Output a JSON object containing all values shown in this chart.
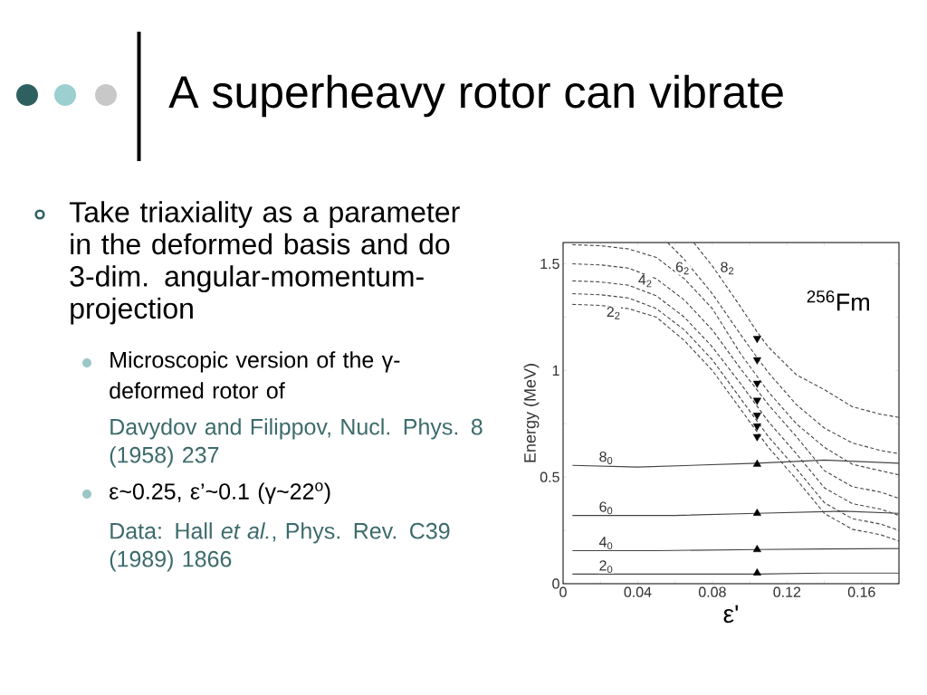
{
  "chart_data": {
    "type": "line",
    "title": "A superheavy rotor can vibrate",
    "xlabel": "ε'",
    "ylabel": "Energy (MeV)",
    "xlim": [
      0,
      0.18
    ],
    "ylim": [
      0,
      1.6
    ],
    "xticks": [
      0,
      {
        "value": 0.02,
        "label": null
      },
      0.04,
      {
        "value": 0.06,
        "label": null
      },
      0.08,
      {
        "value": 0.1,
        "label": null
      },
      0.12,
      {
        "value": 0.14,
        "label": null
      },
      0.16
    ],
    "yticks": [
      0,
      {
        "value": 0.25,
        "label": null
      },
      0.5,
      {
        "value": 0.75,
        "label": null
      },
      1,
      {
        "value": 1.25,
        "label": null
      },
      1.5
    ],
    "grid": false,
    "series": [
      {
        "color": "#444444",
        "line_style": "solid",
        "marker": "none",
        "x": [
          0.005,
          0.05,
          0.104,
          0.14,
          0.18
        ],
        "values": [
          0.045,
          0.045,
          0.045,
          0.05,
          0.05
        ]
      },
      {
        "color": "#444444",
        "line_style": "solid",
        "marker": "none",
        "x": [
          0.005,
          0.05,
          0.104,
          0.14,
          0.18
        ],
        "values": [
          0.155,
          0.155,
          0.16,
          0.163,
          0.165
        ]
      },
      {
        "color": "#444444",
        "line_style": "solid",
        "marker": "none",
        "x": [
          0.005,
          0.06,
          0.104,
          0.15,
          0.18
        ],
        "values": [
          0.32,
          0.32,
          0.33,
          0.34,
          0.33
        ]
      },
      {
        "color": "#444444",
        "line_style": "solid",
        "marker": "none",
        "x": [
          0.005,
          0.04,
          0.104,
          0.14,
          0.18
        ],
        "values": [
          0.555,
          0.547,
          0.565,
          0.58,
          0.565
        ]
      },
      {
        "color": "#444444",
        "line_style": "dashed",
        "marker": "none",
        "x": [
          0.005,
          0.02,
          0.035,
          0.05,
          0.065,
          0.08,
          0.095,
          0.11,
          0.125,
          0.14,
          0.155,
          0.17,
          0.18
        ],
        "values": [
          1.31,
          1.305,
          1.29,
          1.25,
          1.14,
          1.0,
          0.82,
          0.64,
          0.49,
          0.33,
          0.255,
          0.23,
          0.2
        ]
      },
      {
        "color": "#444444",
        "line_style": "dashed",
        "marker": "none",
        "x": [
          0.005,
          0.02,
          0.035,
          0.05,
          0.065,
          0.08,
          0.095,
          0.11,
          0.125,
          0.14,
          0.155,
          0.17,
          0.18
        ],
        "values": [
          1.36,
          1.355,
          1.34,
          1.29,
          1.19,
          1.05,
          0.87,
          0.69,
          0.54,
          0.38,
          0.305,
          0.28,
          0.25
        ]
      },
      {
        "color": "#444444",
        "line_style": "dashed",
        "marker": "none",
        "x": [
          0.005,
          0.02,
          0.035,
          0.05,
          0.065,
          0.08,
          0.095,
          0.11,
          0.125,
          0.14,
          0.155,
          0.17,
          0.18
        ],
        "values": [
          1.42,
          1.415,
          1.4,
          1.35,
          1.25,
          1.11,
          0.94,
          0.76,
          0.61,
          0.45,
          0.375,
          0.35,
          0.32
        ]
      },
      {
        "color": "#444444",
        "line_style": "dashed",
        "marker": "none",
        "x": [
          0.005,
          0.02,
          0.035,
          0.05,
          0.065,
          0.08,
          0.095,
          0.11,
          0.125,
          0.14,
          0.155,
          0.17,
          0.18
        ],
        "values": [
          1.5,
          1.495,
          1.48,
          1.43,
          1.33,
          1.19,
          1.01,
          0.84,
          0.69,
          0.53,
          0.455,
          0.43,
          0.4
        ]
      },
      {
        "color": "#444444",
        "line_style": "dashed",
        "marker": "none",
        "x": [
          0.005,
          0.02,
          0.035,
          0.05,
          0.065,
          0.08,
          0.095,
          0.11,
          0.125,
          0.14,
          0.155,
          0.17,
          0.18
        ],
        "values": [
          1.59,
          1.585,
          1.57,
          1.53,
          1.43,
          1.29,
          1.08,
          0.9,
          0.75,
          0.64,
          0.56,
          0.53,
          0.51
        ]
      },
      {
        "color": "#444444",
        "line_style": "dashed",
        "marker": "none",
        "x": [
          0.056,
          0.065,
          0.08,
          0.095,
          0.104,
          0.11,
          0.125,
          0.14,
          0.155,
          0.17,
          0.18
        ],
        "values": [
          1.6,
          1.52,
          1.36,
          1.17,
          1.06,
          0.99,
          0.84,
          0.73,
          0.66,
          0.625,
          0.61
        ]
      },
      {
        "color": "#444444",
        "line_style": "dashed",
        "marker": "none",
        "x": [
          0.07,
          0.08,
          0.095,
          0.104,
          0.11,
          0.125,
          0.14,
          0.155,
          0.17,
          0.18
        ],
        "values": [
          1.6,
          1.49,
          1.3,
          1.18,
          1.11,
          0.98,
          0.91,
          0.83,
          0.795,
          0.78
        ]
      },
      {
        "type": "scatter",
        "color": "#000000",
        "marker": "triangle",
        "x": [
          0.104,
          0.104,
          0.104,
          0.104
        ],
        "values": [
          0.05,
          0.16,
          0.33,
          0.56
        ]
      },
      {
        "type": "scatter",
        "color": "#000000",
        "marker": "triangle_down",
        "x": [
          0.104,
          0.104,
          0.104,
          0.104,
          0.104,
          0.104,
          0.104
        ],
        "values": [
          1.15,
          1.05,
          0.94,
          0.86,
          0.79,
          0.74,
          0.69
        ]
      }
    ],
    "annotations": [
      "Take triaxiality as a parameter in the deformed basis and do 3-dim. angular-momentum-projection",
      "Microscopic version of the γ-deformed rotor of",
      "Davydov and Filippov, Nucl. Phys. 8 (1958) 237",
      "ε~0.25, ε’~0.1 (γ~22$^{o}$)",
      "Data: Hall *et al.*, Phys. Rev. C39 (1989) 1866",
      "$^{256}$Fm",
      {
        "text": "2$_{2}$",
        "x": 0.027,
        "y": 1.27
      },
      {
        "text": "4$_{2}$",
        "x": 0.044,
        "y": 1.42
      },
      {
        "text": "6$_{2}$",
        "x": 0.064,
        "y": 1.48
      },
      {
        "text": "8$_{2}$",
        "x": 0.088,
        "y": 1.48
      },
      {
        "text": "8$_{0}$",
        "x": 0.023,
        "y": 0.59
      },
      {
        "text": "6$_{0}$",
        "x": 0.023,
        "y": 0.355
      },
      {
        "text": "4$_{0}$",
        "x": 0.023,
        "y": 0.19
      },
      {
        "text": "2$_{0}$",
        "x": 0.023,
        "y": 0.08
      }
    ]
  }
}
